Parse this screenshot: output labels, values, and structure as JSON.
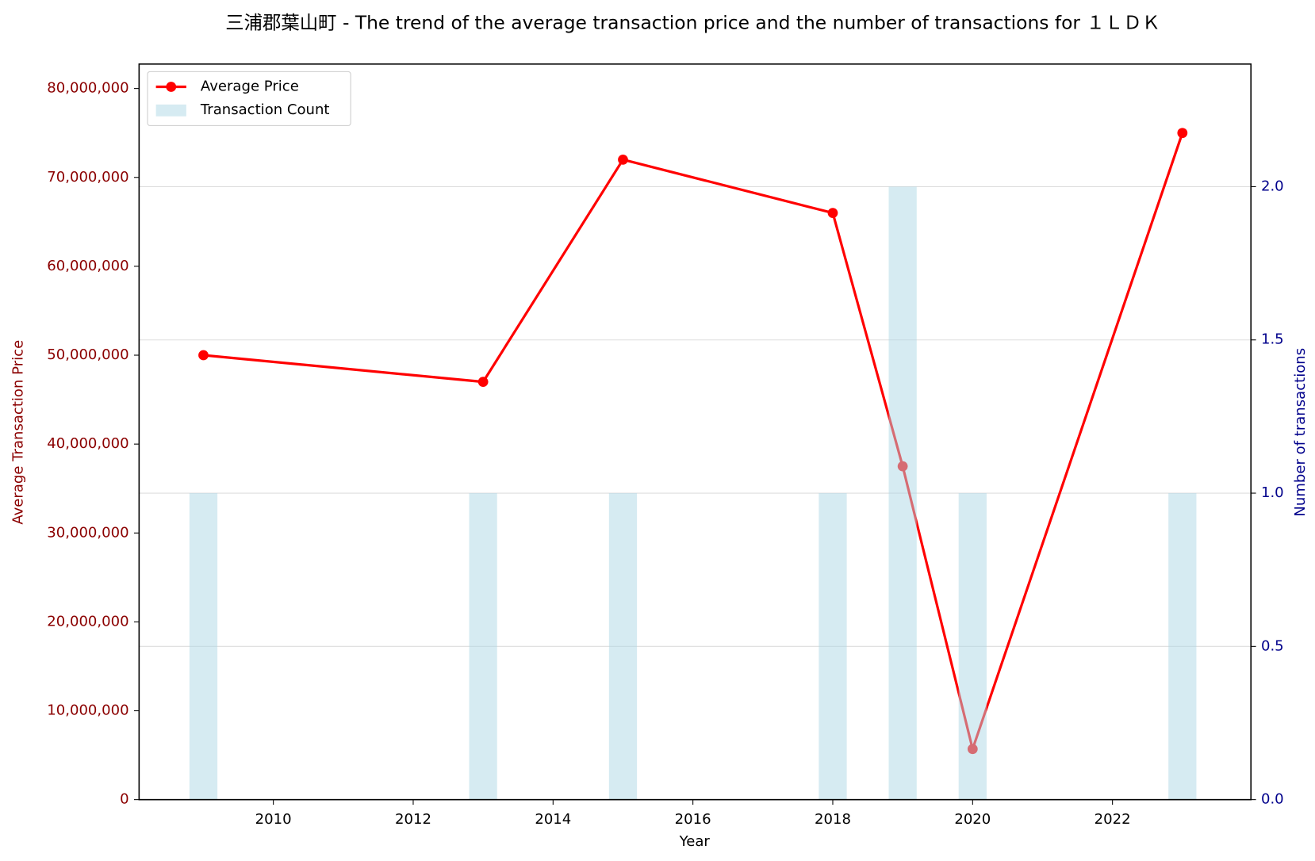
{
  "chart_data": {
    "type": "line-bar",
    "title": "三浦郡葉山町 - The trend of the average transaction price and the number of transactions for １ＬＤＫ",
    "x_label": "Year",
    "y_label": "Average Transaction Price",
    "y2_label": "Number of transactions",
    "x": [
      2009,
      2013,
      2015,
      2018,
      2019,
      2020,
      2023
    ],
    "series": [
      {
        "name": "Average Price",
        "color": "#ff0000",
        "kind": "line",
        "values": [
          50000000,
          47000000,
          72000000,
          66000000,
          37500000,
          5700000,
          75000000
        ]
      },
      {
        "name": "Transaction Count",
        "color": "#add8e6",
        "kind": "bar",
        "axis": "y2",
        "values": [
          1,
          1,
          1,
          1,
          2,
          1,
          1
        ]
      }
    ],
    "xlim": [
      2008.08,
      2023.98
    ],
    "xticks": [
      2010,
      2012,
      2014,
      2016,
      2018,
      2020,
      2022
    ],
    "ylim": [
      0,
      82750000
    ],
    "yticks": [
      0,
      {
        "value": 10000000,
        "label": "10,000,000"
      },
      {
        "value": 20000000,
        "label": "20,000,000"
      },
      {
        "value": 30000000,
        "label": "30,000,000"
      },
      {
        "value": 40000000,
        "label": "40,000,000"
      },
      {
        "value": 50000000,
        "label": "50,000,000"
      },
      {
        "value": 60000000,
        "label": "60,000,000"
      },
      {
        "value": 70000000,
        "label": "70,000,000"
      },
      {
        "value": 80000000,
        "label": "80,000,000"
      }
    ],
    "y2lim": [
      0,
      2.4
    ],
    "y2ticks": [
      {
        "value": 0,
        "label": "0.0"
      },
      {
        "value": 0.5,
        "label": "0.5"
      },
      {
        "value": 1,
        "label": "1.0"
      },
      {
        "value": 1.5,
        "label": "1.5"
      },
      {
        "value": 2,
        "label": "2.0"
      }
    ],
    "grid": true,
    "legend": "upper left"
  }
}
